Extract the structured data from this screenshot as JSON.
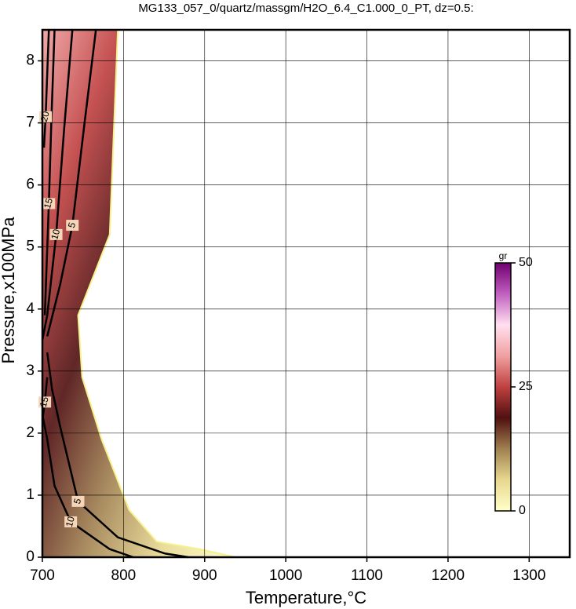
{
  "chart_data": {
    "type": "contour",
    "title": "MG133_057_0/quartz/massgm/H2O_6.4_C1.000_0_PT, dz=0.5:",
    "x_label": "Temperature,°C",
    "y_label": "Pressure,x100MPa",
    "xlim": [
      700,
      1350
    ],
    "ylim": [
      0,
      8.5
    ],
    "xticks": [
      700,
      800,
      900,
      1000,
      1100,
      1200,
      1300
    ],
    "yticks": [
      0,
      1,
      2,
      3,
      4,
      5,
      6,
      7,
      8
    ],
    "grid": true,
    "field_boundary": {
      "x": [
        700,
        793,
        783,
        744,
        749,
        773,
        807,
        841,
        894,
        938,
        700
      ],
      "y": [
        8.5,
        8.5,
        5.2,
        3.9,
        2.9,
        1.9,
        0.76,
        0.25,
        0.13,
        0,
        0
      ]
    },
    "contours": [
      {
        "level": 5,
        "x": [
          766,
          752,
          737,
          722,
          706,
          null,
          706,
          712,
          722,
          744,
          793,
          851,
          880
        ],
        "y": [
          8.5,
          7.0,
          5.35,
          4.4,
          3.56,
          null,
          3.3,
          2.7,
          2.1,
          0.9,
          0.32,
          0.06,
          0
        ]
      },
      {
        "level": 10,
        "x": [
          737,
          727,
          717,
          706,
          700,
          null,
          700,
          706,
          715,
          735,
          783,
          812
        ],
        "y": [
          8.5,
          6.93,
          5.2,
          3.9,
          3.5,
          null,
          2.3,
          1.9,
          1.15,
          0.57,
          0.13,
          0
        ]
      },
      {
        "level": 15,
        "x": [
          715,
          711,
          708,
          703,
          null,
          700,
          703,
          706
        ],
        "y": [
          8.5,
          7.0,
          5.7,
          3.9,
          null,
          2.2,
          2.5,
          2.9
        ]
      },
      {
        "level": 20,
        "x": [
          708,
          706,
          704,
          702
        ],
        "y": [
          8.5,
          7.8,
          7.1,
          6.6
        ]
      }
    ],
    "colorbar": {
      "label": "gr",
      "lim": [
        0,
        50
      ],
      "ticks": [
        0,
        25,
        50
      ],
      "colormap": [
        "#ffffc8",
        "#e8d890",
        "#a08050",
        "#501010",
        "#c04040",
        "#f0a0a0",
        "#ffe0f0",
        "#c060c0",
        "#700070"
      ]
    }
  }
}
